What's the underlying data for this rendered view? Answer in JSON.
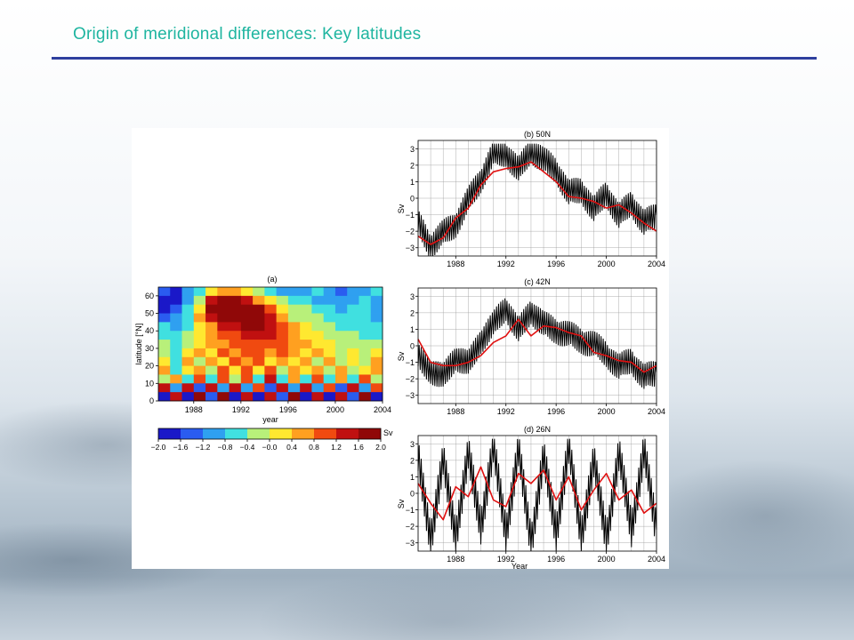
{
  "slide": {
    "title": "Origin of meridional differences: Key latitudes"
  },
  "chart_data": [
    {
      "type": "heatmap",
      "title": "(a)",
      "xlabel": "year",
      "ylabel": "latitude [°N]",
      "xlim": [
        1985,
        2004
      ],
      "ylim": [
        0,
        65
      ],
      "xticks": [
        "1988",
        "1992",
        "1996",
        "2000",
        "2004"
      ],
      "yticks": [
        "0",
        "10",
        "20",
        "30",
        "40",
        "50",
        "60"
      ],
      "colorbar": {
        "unit": "Sv",
        "range": [
          -2.0,
          2.0
        ],
        "ticks": [
          "−2.0",
          "−1.6",
          "−1.2",
          "−0.8",
          "−0.4",
          "−0.0",
          "0.4",
          "0.8",
          "1.2",
          "1.6",
          "2.0"
        ],
        "colors": [
          "#1a18c8",
          "#2a5cf0",
          "#2fa0f0",
          "#40e0e0",
          "#b8f07a",
          "#ffe830",
          "#ffa020",
          "#f04a10",
          "#c01010",
          "#900808"
        ]
      },
      "rows": [
        {
          "lat": 62.5,
          "values": [
            -1.4,
            -1.6,
            -1.2,
            -0.6,
            0.2,
            0.6,
            0.4,
            0.0,
            -0.4,
            -0.8,
            -1.0,
            -1.2,
            -1.0,
            -0.8,
            -1.2,
            -1.4,
            -1.2,
            -1.0,
            -0.8
          ]
        },
        {
          "lat": 57.5,
          "values": [
            -1.6,
            -1.6,
            -1.0,
            -0.2,
            1.2,
            1.6,
            1.6,
            1.4,
            0.6,
            0.0,
            -0.4,
            -0.6,
            -0.8,
            -1.0,
            -1.0,
            -1.2,
            -1.0,
            -0.8,
            -1.0
          ]
        },
        {
          "lat": 52.5,
          "values": [
            -1.8,
            -1.4,
            -0.8,
            0.2,
            1.6,
            1.8,
            1.8,
            1.8,
            1.6,
            0.8,
            0.0,
            -0.4,
            -0.4,
            -0.6,
            -0.8,
            -1.0,
            -0.8,
            -0.8,
            -1.2
          ]
        },
        {
          "lat": 47.5,
          "values": [
            -1.4,
            -1.2,
            -0.6,
            0.4,
            1.2,
            1.6,
            1.8,
            1.8,
            1.6,
            1.2,
            0.4,
            -0.2,
            -0.4,
            -0.4,
            -0.6,
            -0.8,
            -0.6,
            -0.8,
            -1.0
          ]
        },
        {
          "lat": 42.5,
          "values": [
            -0.8,
            -1.0,
            -0.6,
            0.0,
            0.6,
            1.2,
            1.4,
            1.6,
            1.6,
            1.4,
            1.0,
            0.4,
            0.0,
            -0.2,
            -0.4,
            -0.6,
            -0.6,
            -0.8,
            -0.8
          ]
        },
        {
          "lat": 37.5,
          "values": [
            -0.6,
            -0.8,
            -0.4,
            0.0,
            0.4,
            0.8,
            1.0,
            1.2,
            1.4,
            1.2,
            1.0,
            0.6,
            0.2,
            0.0,
            -0.2,
            -0.4,
            -0.4,
            -0.6,
            -0.6
          ]
        },
        {
          "lat": 32.5,
          "values": [
            -0.4,
            -0.6,
            -0.2,
            0.2,
            0.4,
            0.6,
            0.8,
            1.0,
            1.0,
            1.0,
            0.8,
            0.6,
            0.4,
            0.2,
            0.0,
            -0.2,
            -0.2,
            -0.4,
            -0.4
          ]
        },
        {
          "lat": 27.5,
          "values": [
            -0.2,
            -0.6,
            0.0,
            0.4,
            0.2,
            0.8,
            0.4,
            0.8,
            1.0,
            0.6,
            0.8,
            0.4,
            0.2,
            0.4,
            0.0,
            -0.2,
            0.2,
            -0.4,
            0.0
          ]
        },
        {
          "lat": 22.5,
          "values": [
            0.0,
            -0.8,
            0.4,
            -0.2,
            0.6,
            0.2,
            1.0,
            0.4,
            0.8,
            0.2,
            0.6,
            0.0,
            0.4,
            -0.2,
            0.4,
            -0.4,
            0.2,
            -0.2,
            0.4
          ]
        },
        {
          "lat": 17.5,
          "values": [
            0.4,
            -0.6,
            0.2,
            0.6,
            -0.2,
            0.8,
            0.2,
            1.0,
            0.0,
            0.8,
            -0.2,
            0.6,
            0.0,
            0.4,
            -0.4,
            0.6,
            -0.2,
            0.2,
            0.6
          ]
        },
        {
          "lat": 12.5,
          "values": [
            -0.4,
            0.6,
            -0.8,
            0.8,
            -0.6,
            1.0,
            -0.4,
            0.8,
            -0.6,
            1.2,
            -0.8,
            0.6,
            -0.6,
            0.8,
            -0.8,
            0.4,
            -0.6,
            0.8,
            -0.4
          ]
        },
        {
          "lat": 7.5,
          "values": [
            1.2,
            -1.2,
            1.4,
            -1.4,
            1.2,
            -1.0,
            1.4,
            -1.2,
            1.0,
            -1.4,
            1.2,
            -1.0,
            1.4,
            -1.2,
            1.0,
            -1.4,
            1.2,
            -1.2,
            1.0
          ]
        },
        {
          "lat": 2.5,
          "values": [
            -1.6,
            1.4,
            -1.6,
            1.6,
            -1.4,
            1.6,
            -1.6,
            1.2,
            -1.6,
            1.4,
            -1.4,
            1.6,
            -1.6,
            1.2,
            -1.6,
            1.4,
            -1.4,
            1.6,
            -1.6
          ]
        }
      ],
      "row_times": [
        1985.5,
        1986.5,
        1987.5,
        1988.5,
        1989.5,
        1990.5,
        1991.5,
        1992.5,
        1993.5,
        1994.5,
        1995.5,
        1996.5,
        1997.5,
        1998.5,
        1999.5,
        2000.5,
        2001.5,
        2002.5,
        2003.5
      ]
    },
    {
      "type": "line",
      "title": "(b) 50N",
      "ylabel": "Sv",
      "xlabel": "",
      "xlim": [
        1985,
        2004
      ],
      "ylim": [
        -3.5,
        3.5
      ],
      "xticks": [
        "1988",
        "1992",
        "1996",
        "2000",
        "2004"
      ],
      "yticks": [
        "3",
        "2",
        "1",
        "0",
        "−1",
        "−2",
        "−3"
      ],
      "x": [
        1985,
        1986,
        1987,
        1988,
        1989,
        1990,
        1991,
        1992,
        1993,
        1994,
        1995,
        1996,
        1997,
        1998,
        1999,
        2000,
        2001,
        2002,
        2003,
        2004
      ],
      "series": [
        {
          "color": "#000000",
          "values": [
            -1.6,
            -2.8,
            -2.2,
            -1.5,
            -0.2,
            1.2,
            2.6,
            2.8,
            1.6,
            3.0,
            2.2,
            1.8,
            0.2,
            0.6,
            -0.8,
            0.4,
            -1.2,
            -0.2,
            -1.6,
            -1.0
          ]
        },
        {
          "color": "#e01010",
          "values": [
            -2.3,
            -2.8,
            -2.4,
            -1.2,
            -0.6,
            0.8,
            1.6,
            1.8,
            1.9,
            2.2,
            1.6,
            1.0,
            0.1,
            0.0,
            -0.2,
            -0.6,
            -0.4,
            -0.9,
            -1.5,
            -2.0
          ]
        }
      ]
    },
    {
      "type": "line",
      "title": "(c) 42N",
      "ylabel": "Sv",
      "xlabel": "",
      "xlim": [
        1985,
        2004
      ],
      "ylim": [
        -3.5,
        3.5
      ],
      "xticks": [
        "1988",
        "1992",
        "1996",
        "2000",
        "2004"
      ],
      "yticks": [
        "3",
        "2",
        "1",
        "0",
        "−1",
        "−2",
        "−3"
      ],
      "x": [
        1985,
        1986,
        1987,
        1988,
        1989,
        1990,
        1991,
        1992,
        1993,
        1994,
        1995,
        1996,
        1997,
        1998,
        1999,
        2000,
        2001,
        2002,
        2003,
        2004
      ],
      "series": [
        {
          "color": "#000000",
          "values": [
            -0.8,
            -1.4,
            -2.0,
            -0.6,
            -1.2,
            0.4,
            1.2,
            2.4,
            0.8,
            2.2,
            1.2,
            1.0,
            0.6,
            0.4,
            0.0,
            -0.4,
            -1.4,
            -0.8,
            -2.0,
            -1.6
          ]
        },
        {
          "color": "#e01010",
          "values": [
            0.4,
            -1.0,
            -1.2,
            -1.2,
            -1.0,
            -0.6,
            0.2,
            0.6,
            1.6,
            0.6,
            1.2,
            1.1,
            0.8,
            0.6,
            -0.4,
            -0.6,
            -0.9,
            -1.0,
            -1.6,
            -1.2
          ]
        }
      ]
    },
    {
      "type": "line",
      "title": "(d) 26N",
      "ylabel": "Sv",
      "xlabel": "Year",
      "xlim": [
        1985,
        2004
      ],
      "ylim": [
        -3.5,
        3.5
      ],
      "xticks": [
        "1988",
        "1992",
        "1996",
        "2000",
        "2004"
      ],
      "yticks": [
        "3",
        "2",
        "1",
        "0",
        "−1",
        "−2",
        "−3"
      ],
      "x": [
        1985,
        1986,
        1987,
        1988,
        1989,
        1990,
        1991,
        1992,
        1993,
        1994,
        1995,
        1996,
        1997,
        1998,
        1999,
        2000,
        2001,
        2002,
        2003,
        2004
      ],
      "series": [
        {
          "color": "#000000",
          "values": [
            2.0,
            -2.6,
            1.8,
            -2.4,
            2.2,
            -1.8,
            2.6,
            -2.2,
            2.4,
            -2.8,
            2.0,
            -2.2,
            2.6,
            -2.4,
            1.8,
            -2.6,
            2.2,
            -2.0,
            2.4,
            -2.2
          ]
        },
        {
          "color": "#e01010",
          "values": [
            0.6,
            -0.6,
            -1.6,
            0.4,
            -0.2,
            1.6,
            -0.4,
            -0.8,
            1.2,
            0.6,
            1.4,
            -0.4,
            1.0,
            -1.0,
            0.2,
            1.2,
            -0.4,
            0.2,
            -1.2,
            -0.6
          ]
        }
      ]
    }
  ]
}
